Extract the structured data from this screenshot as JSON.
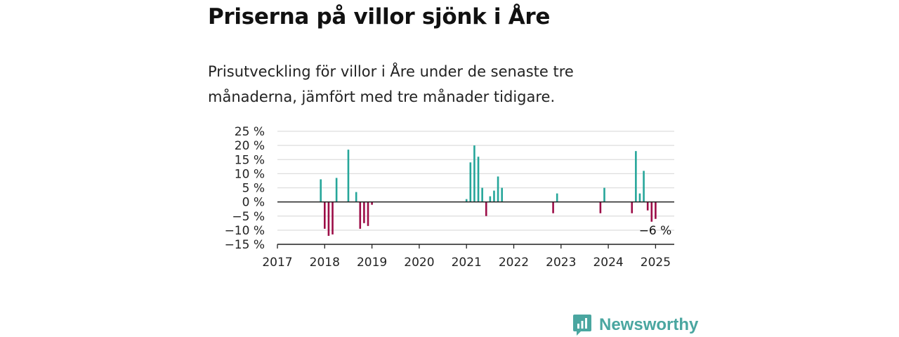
{
  "header": {
    "title": "Priserna på villor sjönk i Åre",
    "subtitle": "Prisutveckling för villor i Åre under de senaste tre månaderna, jämfört med tre månader tidigare."
  },
  "brand": {
    "name": "Newsworthy",
    "icon": "newsworthy-logo-icon",
    "color": "#4aa6a0"
  },
  "colors": {
    "positive": "#26a69a",
    "negative": "#9c0d47",
    "grid": "#dddddd",
    "axis": "#222222"
  },
  "chart_data": {
    "type": "bar",
    "title": "Priserna på villor sjönk i Åre",
    "xlabel": "",
    "ylabel": "",
    "x_ticks": [
      "2017",
      "2018",
      "2019",
      "2020",
      "2021",
      "2022",
      "2023",
      "2024",
      "2025"
    ],
    "y_ticks": [
      "25 %",
      "20 %",
      "15 %",
      "10 %",
      "5 %",
      "0 %",
      "−10 %",
      "−15 %"
    ],
    "y_tick_values": [
      25,
      20,
      15,
      10,
      5,
      0,
      -10,
      -15
    ],
    "y_tick_labels_all": [
      "25 %",
      "20 %",
      "15 %",
      "10 %",
      "5 %",
      "0 %",
      "−5 %",
      "−10 %",
      "−15 %"
    ],
    "xlim": [
      "2017-01",
      "2025-05"
    ],
    "ylim": [
      -15,
      25
    ],
    "grid": true,
    "annotation": {
      "text": "−6 %",
      "at": "2024-12"
    },
    "series": [
      {
        "values": [
          {
            "date": "2017-12",
            "value": 8
          },
          {
            "date": "2018-01",
            "value": -9.5
          },
          {
            "date": "2018-02",
            "value": -12
          },
          {
            "date": "2018-03",
            "value": -11.5
          },
          {
            "date": "2018-04",
            "value": 8.5
          },
          {
            "date": "2018-07",
            "value": 18.5
          },
          {
            "date": "2018-09",
            "value": 3.5
          },
          {
            "date": "2018-10",
            "value": -9.5
          },
          {
            "date": "2018-11",
            "value": -7.5
          },
          {
            "date": "2018-12",
            "value": -8.5
          },
          {
            "date": "2019-01",
            "value": -1
          },
          {
            "date": "2021-01",
            "value": 1
          },
          {
            "date": "2021-02",
            "value": 14
          },
          {
            "date": "2021-03",
            "value": 20
          },
          {
            "date": "2021-04",
            "value": 16
          },
          {
            "date": "2021-05",
            "value": 5
          },
          {
            "date": "2021-06",
            "value": -5
          },
          {
            "date": "2021-07",
            "value": 2
          },
          {
            "date": "2021-08",
            "value": 4
          },
          {
            "date": "2021-09",
            "value": 9
          },
          {
            "date": "2021-10",
            "value": 5
          },
          {
            "date": "2022-11",
            "value": -4
          },
          {
            "date": "2022-12",
            "value": 3
          },
          {
            "date": "2023-11",
            "value": -4
          },
          {
            "date": "2023-12",
            "value": 5
          },
          {
            "date": "2024-07",
            "value": -4
          },
          {
            "date": "2024-08",
            "value": 18
          },
          {
            "date": "2024-09",
            "value": 3
          },
          {
            "date": "2024-10",
            "value": 11
          },
          {
            "date": "2024-11",
            "value": -3
          },
          {
            "date": "2024-12",
            "value": -7
          },
          {
            "date": "2025-01",
            "value": -6
          }
        ]
      }
    ]
  }
}
